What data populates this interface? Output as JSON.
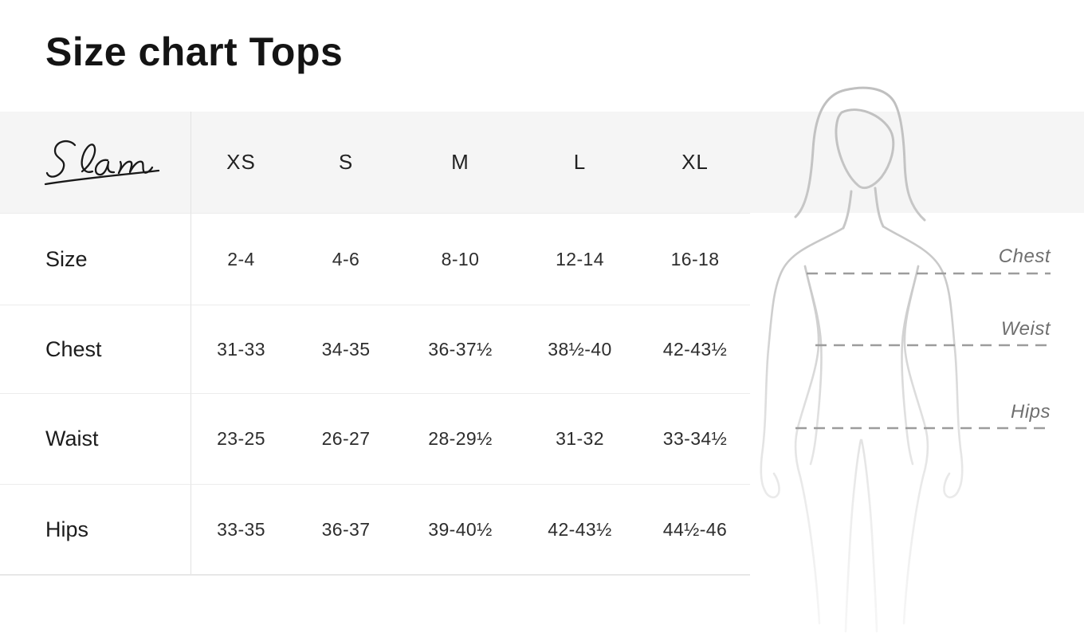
{
  "page": {
    "title": "Size chart Tops"
  },
  "brand": {
    "logo_text": "Elan"
  },
  "table": {
    "size_headers": [
      "XS",
      "S",
      "M",
      "L",
      "XL"
    ],
    "rows": [
      {
        "label": "Size",
        "values": [
          "2-4",
          "4-6",
          "8-10",
          "12-14",
          "16-18"
        ]
      },
      {
        "label": "Chest",
        "values": [
          "31-33",
          "34-35",
          "36-37½",
          "38½-40",
          "42-43½"
        ]
      },
      {
        "label": "Waist",
        "values": [
          "23-25",
          "26-27",
          "28-29½",
          "31-32",
          "33-34½"
        ]
      },
      {
        "label": "Hips",
        "values": [
          "33-35",
          "36-37",
          "39-40½",
          "42-43½",
          "44½-46"
        ]
      }
    ]
  },
  "figure": {
    "measurement_labels": [
      {
        "text": "Chest"
      },
      {
        "text": "Weist"
      },
      {
        "text": "Hips"
      }
    ]
  },
  "chart_data": {
    "type": "table",
    "title": "Size chart Tops",
    "columns": [
      "",
      "XS",
      "S",
      "M",
      "L",
      "XL"
    ],
    "rows": [
      [
        "Size",
        "2-4",
        "4-6",
        "8-10",
        "12-14",
        "16-18"
      ],
      [
        "Chest",
        "31-33",
        "34-35",
        "36-37½",
        "38½-40",
        "42-43½"
      ],
      [
        "Waist",
        "23-25",
        "26-27",
        "28-29½",
        "31-32",
        "33-34½"
      ],
      [
        "Hips",
        "33-35",
        "36-37",
        "39-40½",
        "42-43½",
        "44½-46"
      ]
    ]
  },
  "colors": {
    "header_band": "#f5f5f5",
    "row_border": "#ececec",
    "divider": "#e2e2e2",
    "title_text": "#141414",
    "figure_line": "#c4c4c4",
    "dash_line": "#9c9c9c",
    "figure_label": "#6f6f6f"
  }
}
